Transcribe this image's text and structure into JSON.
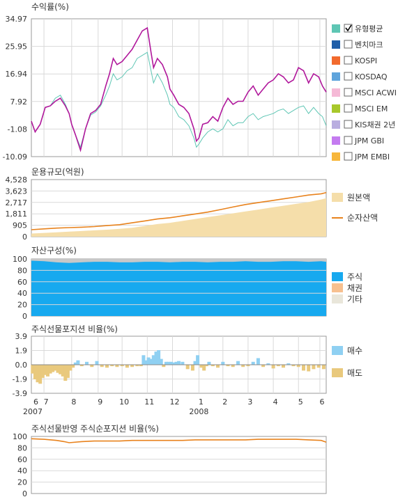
{
  "colors": {
    "grid": "#d9d9d9",
    "frame": "#999999",
    "fund": "#b0179b",
    "benchmark": "#5ec6b4",
    "aum_fill": "#f5deaa",
    "aum_line": "#e8821c",
    "stock": "#17a9ef",
    "bond": "#f7c08f",
    "other": "#c8c8c8",
    "buy": "#8fd0f2",
    "sell": "#e9c97d",
    "net_line": "#e8821c"
  },
  "x_axis": {
    "month_labels": [
      "6",
      "7",
      "8",
      "9",
      "10",
      "11",
      "12",
      "1",
      "2",
      "3",
      "4",
      "5",
      "6"
    ],
    "month_positions": [
      0,
      0.5,
      1.6,
      2.65,
      3.6,
      4.6,
      5.6,
      6.65,
      7.6,
      8.6,
      9.6,
      10.6,
      11.45
    ],
    "year_labels": [
      {
        "label": "2007",
        "pos": 0
      },
      {
        "label": "2008",
        "pos": 6.65
      }
    ],
    "range": [
      0,
      11.7
    ]
  },
  "chart_data": [
    {
      "type": "line",
      "title": "수익률(%)",
      "yticks": [
        "34.97",
        "25.95",
        "16.94",
        "7.92",
        "-1.08",
        "-10.09"
      ],
      "ylim": [
        -10.09,
        34.97
      ],
      "grid": true,
      "legend_position": "right",
      "legend": [
        {
          "label": "유형평균",
          "swatch": "#5ec6b4",
          "checked": true
        },
        {
          "label": "벤치마크",
          "swatch": "#1f5ea8",
          "checked": false
        },
        {
          "label": "KOSPI",
          "swatch": "#f26a2d",
          "checked": false
        },
        {
          "label": "KOSDAQ",
          "swatch": "#5fa4dc",
          "checked": false
        },
        {
          "label": "MSCI ACWI",
          "swatch": "#f5b9d6",
          "checked": false
        },
        {
          "label": "MSCI EM",
          "swatch": "#a8c82b",
          "checked": false
        },
        {
          "label": "KIS채권 2년",
          "swatch": "#b9aee0",
          "checked": false
        },
        {
          "label": "JPM GBI",
          "swatch": "#c47bf0",
          "checked": false
        },
        {
          "label": "JPM EMBI",
          "swatch": "#f7b73c",
          "checked": false
        }
      ],
      "series": [
        {
          "key": "fund",
          "x": [
            0,
            0.15,
            0.35,
            0.55,
            0.75,
            0.95,
            1.15,
            1.35,
            1.5,
            1.6,
            1.75,
            1.95,
            2.15,
            2.35,
            2.55,
            2.75,
            2.95,
            3.1,
            3.25,
            3.4,
            3.6,
            3.8,
            4.0,
            4.2,
            4.4,
            4.6,
            4.75,
            4.85,
            5.0,
            5.2,
            5.4,
            5.5,
            5.65,
            5.85,
            6.05,
            6.25,
            6.45,
            6.55,
            6.65,
            6.8,
            7.0,
            7.2,
            7.4,
            7.6,
            7.8,
            8.0,
            8.2,
            8.4,
            8.6,
            8.8,
            9.0,
            9.2,
            9.4,
            9.6,
            9.8,
            10.0,
            10.2,
            10.4,
            10.6,
            10.8,
            11.0,
            11.2,
            11.4,
            11.55,
            11.7
          ],
          "y": [
            1.5,
            -2.0,
            0.5,
            6.0,
            6.5,
            8.0,
            9.0,
            6.5,
            4.0,
            0.5,
            -3.0,
            -8.0,
            -1.0,
            4.0,
            5.0,
            7.0,
            13.0,
            17.0,
            22.0,
            20.0,
            21.0,
            23.0,
            25.0,
            28.0,
            31.0,
            32.0,
            24.0,
            19.0,
            22.0,
            20.0,
            16.0,
            12.0,
            10.0,
            7.0,
            6.0,
            4.0,
            -1.0,
            -5.0,
            -4.0,
            0.5,
            1.0,
            3.0,
            1.5,
            6.0,
            9.0,
            7.0,
            8.0,
            8.0,
            11.0,
            13.0,
            10.0,
            12.0,
            14.0,
            15.0,
            17.0,
            16.0,
            14.0,
            15.0,
            19.0,
            18.0,
            14.0,
            17.0,
            16.0,
            13.0,
            11.0
          ]
        },
        {
          "key": "benchmark",
          "x": [
            0,
            0.15,
            0.35,
            0.55,
            0.75,
            0.95,
            1.15,
            1.35,
            1.5,
            1.6,
            1.75,
            1.95,
            2.15,
            2.35,
            2.55,
            2.75,
            2.95,
            3.1,
            3.25,
            3.4,
            3.6,
            3.8,
            4.0,
            4.2,
            4.4,
            4.6,
            4.75,
            4.85,
            5.0,
            5.2,
            5.4,
            5.5,
            5.65,
            5.85,
            6.05,
            6.25,
            6.45,
            6.55,
            6.65,
            6.8,
            7.0,
            7.2,
            7.4,
            7.6,
            7.8,
            8.0,
            8.2,
            8.4,
            8.6,
            8.8,
            9.0,
            9.2,
            9.4,
            9.6,
            9.8,
            10.0,
            10.2,
            10.4,
            10.6,
            10.8,
            11.0,
            11.2,
            11.4,
            11.55,
            11.7
          ],
          "y": [
            1.5,
            -2.0,
            0.5,
            6.0,
            6.5,
            9.0,
            10.0,
            7.0,
            4.0,
            0.5,
            -3.0,
            -7.0,
            -1.0,
            3.5,
            4.5,
            6.5,
            10.0,
            13.0,
            17.0,
            15.0,
            16.0,
            18.0,
            19.0,
            22.0,
            23.0,
            24.0,
            18.0,
            14.0,
            17.0,
            14.0,
            10.0,
            7.0,
            6.0,
            3.0,
            2.0,
            0.0,
            -4.0,
            -7.0,
            -6.0,
            -4.0,
            -2.0,
            -1.0,
            -2.0,
            -1.0,
            2.0,
            0.0,
            1.0,
            1.0,
            3.0,
            4.0,
            2.0,
            3.0,
            3.5,
            4.0,
            5.0,
            5.5,
            4.0,
            5.0,
            6.0,
            6.5,
            4.0,
            6.0,
            4.0,
            3.0,
            0.0
          ]
        }
      ]
    },
    {
      "type": "area",
      "title": "운용규모(억원)",
      "yticks": [
        "4,528",
        "3,623",
        "2,717",
        "1,811",
        "905",
        "0"
      ],
      "ylim": [
        0,
        4528
      ],
      "grid": true,
      "legend_position": "right",
      "legend": [
        {
          "label": "원본액",
          "kind": "box"
        },
        {
          "label": "순자산액",
          "kind": "line"
        }
      ],
      "series": [
        {
          "name": "원본액",
          "x": [
            0,
            0.5,
            1.0,
            1.5,
            2.0,
            2.5,
            3.0,
            3.5,
            4.0,
            4.5,
            5.0,
            5.5,
            6.0,
            6.5,
            7.0,
            7.5,
            8.0,
            8.5,
            9.0,
            9.5,
            10.0,
            10.5,
            11.0,
            11.5,
            11.7
          ],
          "values": [
            250,
            300,
            350,
            400,
            450,
            500,
            550,
            620,
            700,
            850,
            1000,
            1100,
            1250,
            1400,
            1550,
            1700,
            1850,
            2000,
            2150,
            2300,
            2450,
            2600,
            2750,
            2950,
            3050
          ]
        },
        {
          "name": "순자산액",
          "x": [
            0,
            0.5,
            1.0,
            1.5,
            2.0,
            2.5,
            3.0,
            3.5,
            4.0,
            4.5,
            5.0,
            5.5,
            6.0,
            6.5,
            7.0,
            7.5,
            8.0,
            8.5,
            9.0,
            9.5,
            10.0,
            10.5,
            11.0,
            11.5,
            11.7
          ],
          "values": [
            550,
            620,
            680,
            720,
            750,
            800,
            880,
            950,
            1100,
            1250,
            1400,
            1500,
            1650,
            1800,
            1950,
            2150,
            2350,
            2550,
            2700,
            2850,
            3000,
            3150,
            3300,
            3400,
            3500
          ]
        }
      ]
    },
    {
      "type": "area",
      "title": "자산구성(%)",
      "yticks": [
        "100",
        "80",
        "60",
        "40",
        "20",
        "0"
      ],
      "ylim": [
        0,
        100
      ],
      "grid": true,
      "stacked": true,
      "legend_position": "right",
      "legend": [
        {
          "label": "주식",
          "swatch": "#17a9ef"
        },
        {
          "label": "채권",
          "swatch": "#f7c08f"
        },
        {
          "label": "기타",
          "swatch": "#e9e6da"
        }
      ],
      "series": [
        {
          "name": "주식",
          "x": [
            0,
            0.5,
            1.0,
            1.5,
            2.0,
            2.5,
            3.0,
            3.5,
            4.0,
            4.5,
            5.0,
            5.5,
            6.0,
            6.5,
            7.0,
            7.5,
            8.0,
            8.5,
            9.0,
            9.5,
            10.0,
            10.5,
            11.0,
            11.5,
            11.7
          ],
          "values": [
            97,
            96,
            94,
            93,
            94,
            95,
            95,
            94,
            94,
            95,
            95,
            94,
            95,
            95,
            94,
            95,
            95,
            96,
            95,
            95,
            96,
            96,
            95,
            96,
            95
          ]
        },
        {
          "name": "채권",
          "x": [
            0,
            11.7
          ],
          "values": [
            0,
            0
          ]
        },
        {
          "name": "기타",
          "x": [
            0,
            0.5,
            1.0,
            1.5,
            2.0,
            2.5,
            3.0,
            3.5,
            4.0,
            4.5,
            5.0,
            5.5,
            6.0,
            6.5,
            7.0,
            7.5,
            8.0,
            8.5,
            9.0,
            9.5,
            10.0,
            10.5,
            11.0,
            11.5,
            11.7
          ],
          "values": [
            3,
            4,
            6,
            7,
            6,
            5,
            5,
            6,
            6,
            5,
            5,
            6,
            5,
            5,
            6,
            5,
            5,
            4,
            5,
            5,
            4,
            4,
            5,
            4,
            5
          ]
        }
      ]
    },
    {
      "type": "bar",
      "title": "주식선물포지션 비율(%)",
      "yticks": [
        "3.9",
        "1.9",
        "0.0",
        "-1.9",
        "-3.9"
      ],
      "ylim": [
        -3.9,
        3.9
      ],
      "grid": true,
      "legend_position": "right",
      "legend": [
        {
          "label": "매수",
          "swatch": "#8fd0f2"
        },
        {
          "label": "매도",
          "swatch": "#e9c97d"
        }
      ],
      "series": [
        {
          "name": "net",
          "x": [
            0.05,
            0.15,
            0.25,
            0.35,
            0.45,
            0.55,
            0.65,
            0.75,
            0.85,
            0.95,
            1.05,
            1.15,
            1.25,
            1.35,
            1.45,
            1.55,
            1.65,
            1.75,
            1.85,
            2.0,
            2.2,
            2.4,
            2.6,
            2.8,
            3.0,
            3.2,
            3.4,
            3.6,
            3.8,
            4.0,
            4.2,
            4.35,
            4.45,
            4.55,
            4.65,
            4.75,
            4.85,
            4.95,
            5.05,
            5.15,
            5.25,
            5.35,
            5.45,
            5.55,
            5.65,
            5.75,
            5.85,
            6.0,
            6.2,
            6.4,
            6.5,
            6.6,
            6.75,
            6.85,
            6.95,
            7.05,
            7.2,
            7.4,
            7.6,
            7.8,
            8.0,
            8.2,
            8.4,
            8.6,
            8.8,
            9.0,
            9.2,
            9.4,
            9.6,
            9.8,
            10.0,
            10.2,
            10.4,
            10.6,
            10.8,
            11.0,
            11.2,
            11.4,
            11.6
          ],
          "values": [
            -1.2,
            -2.0,
            -2.4,
            -2.6,
            -1.8,
            -1.4,
            -1.6,
            -1.2,
            -1.0,
            -0.8,
            -1.1,
            -1.3,
            -1.6,
            -2.2,
            -1.8,
            -0.8,
            -0.4,
            0.3,
            0.6,
            -0.2,
            0.4,
            -0.3,
            0.5,
            -0.3,
            -0.4,
            -0.2,
            -0.3,
            -0.2,
            -0.4,
            -0.3,
            -0.2,
            -0.2,
            1.3,
            0.6,
            1.0,
            0.8,
            1.3,
            1.8,
            2.0,
            0.8,
            -0.3,
            0.4,
            0.4,
            0.4,
            0.3,
            0.4,
            0.5,
            0.4,
            -0.6,
            -0.8,
            0.5,
            1.3,
            -0.4,
            -0.8,
            -0.2,
            0.4,
            -0.2,
            -0.4,
            0.4,
            -0.2,
            -0.3,
            0.5,
            -0.3,
            -0.2,
            0.4,
            0.9,
            -0.3,
            0.2,
            -0.5,
            -0.2,
            -0.4,
            0.2,
            -0.2,
            -0.3,
            -0.8,
            -0.9,
            -0.6,
            -0.4,
            -0.6
          ]
        }
      ]
    },
    {
      "type": "line",
      "title": "주식선물반영 주식순포지션 비율(%)",
      "yticks": [
        "100",
        "80",
        "60",
        "40",
        "20",
        "0"
      ],
      "ylim": [
        0,
        100
      ],
      "grid": true,
      "series": [
        {
          "name": "net",
          "x": [
            0,
            0.5,
            1.0,
            1.3,
            1.5,
            2.0,
            2.5,
            3.0,
            3.5,
            4.0,
            4.5,
            5.0,
            5.5,
            6.0,
            6.5,
            7.0,
            7.5,
            8.0,
            8.5,
            9.0,
            9.5,
            10.0,
            10.5,
            11.0,
            11.5,
            11.7
          ],
          "values": [
            96,
            95,
            93,
            91,
            89,
            91,
            92,
            92,
            92,
            93,
            93,
            93,
            93,
            93,
            94,
            94,
            94,
            94,
            94,
            95,
            95,
            95,
            95,
            94,
            93,
            90
          ]
        }
      ]
    }
  ]
}
